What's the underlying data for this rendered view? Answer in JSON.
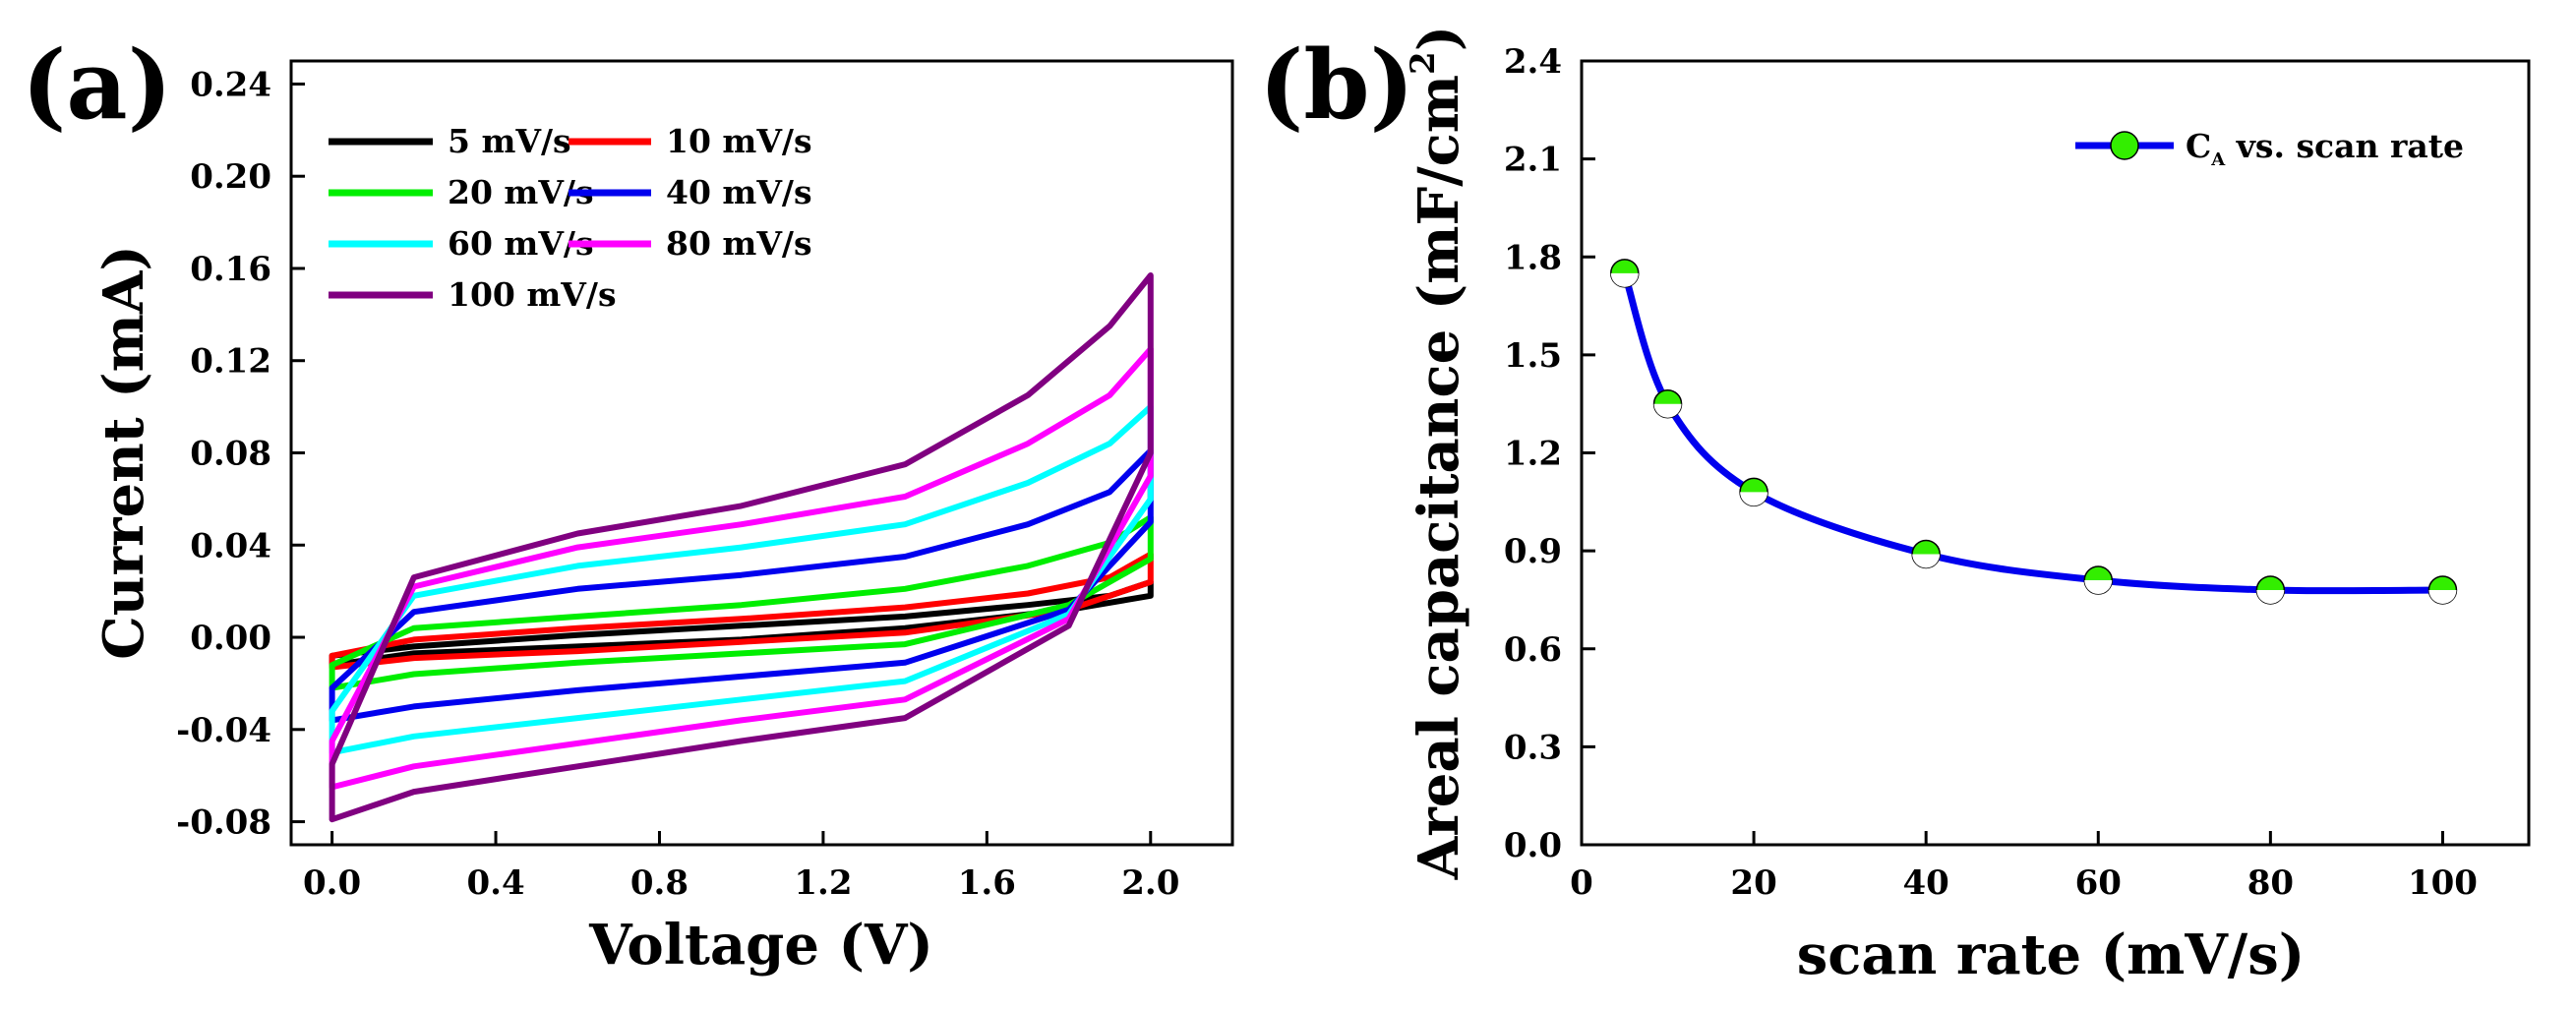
{
  "chart_data": [
    {
      "type": "line",
      "panel": "(a)",
      "title": "",
      "xlabel": "Voltage (V)",
      "ylabel": "Current (mA)",
      "xlim": [
        -0.1,
        2.2
      ],
      "ylim": [
        -0.09,
        0.25
      ],
      "xticks": [
        0.0,
        0.4,
        0.8,
        1.2,
        1.6,
        2.0
      ],
      "xtick_labels": [
        "0.0",
        "0.4",
        "0.8",
        "1.2",
        "1.6",
        "2.0"
      ],
      "yticks": [
        -0.08,
        -0.04,
        0.0,
        0.04,
        0.08,
        0.12,
        0.16,
        0.2,
        0.24
      ],
      "ytick_labels": [
        "-0.08",
        "-0.04",
        "0.00",
        "0.04",
        "0.08",
        "0.12",
        "0.16",
        "0.20",
        "0.24"
      ],
      "grid": false,
      "legend_position": "top-left",
      "series": [
        {
          "name": "5 mV/s",
          "color": "#000000",
          "upper": [
            [
              0,
              -0.008
            ],
            [
              0.2,
              -0.004
            ],
            [
              0.6,
              0.001
            ],
            [
              1.0,
              0.005
            ],
            [
              1.4,
              0.009
            ],
            [
              1.7,
              0.014
            ],
            [
              1.9,
              0.018
            ],
            [
              2.0,
              0.024
            ]
          ],
          "lower": [
            [
              2.0,
              0.018
            ],
            [
              1.8,
              0.012
            ],
            [
              1.4,
              0.004
            ],
            [
              1.0,
              -0.001
            ],
            [
              0.6,
              -0.004
            ],
            [
              0.2,
              -0.007
            ],
            [
              0,
              -0.012
            ]
          ]
        },
        {
          "name": "10 mV/s",
          "color": "#ff0000",
          "upper": [
            [
              0,
              -0.008
            ],
            [
              0.2,
              -0.001
            ],
            [
              0.6,
              0.004
            ],
            [
              1.0,
              0.008
            ],
            [
              1.4,
              0.013
            ],
            [
              1.7,
              0.019
            ],
            [
              1.9,
              0.026
            ],
            [
              2.0,
              0.036
            ]
          ],
          "lower": [
            [
              2.0,
              0.024
            ],
            [
              1.8,
              0.012
            ],
            [
              1.4,
              0.002
            ],
            [
              1.0,
              -0.002
            ],
            [
              0.6,
              -0.006
            ],
            [
              0.2,
              -0.009
            ],
            [
              0,
              -0.013
            ]
          ]
        },
        {
          "name": "20 mV/s",
          "color": "#00ee00",
          "upper": [
            [
              0,
              -0.012
            ],
            [
              0.2,
              0.004
            ],
            [
              0.6,
              0.009
            ],
            [
              1.0,
              0.014
            ],
            [
              1.4,
              0.021
            ],
            [
              1.7,
              0.031
            ],
            [
              1.9,
              0.041
            ],
            [
              2.0,
              0.052
            ]
          ],
          "lower": [
            [
              2.0,
              0.034
            ],
            [
              1.8,
              0.014
            ],
            [
              1.4,
              -0.003
            ],
            [
              1.0,
              -0.007
            ],
            [
              0.6,
              -0.011
            ],
            [
              0.2,
              -0.016
            ],
            [
              0,
              -0.022
            ]
          ]
        },
        {
          "name": "40 mV/s",
          "color": "#0000ee",
          "upper": [
            [
              0,
              -0.022
            ],
            [
              0.2,
              0.011
            ],
            [
              0.6,
              0.021
            ],
            [
              1.0,
              0.027
            ],
            [
              1.4,
              0.035
            ],
            [
              1.7,
              0.049
            ],
            [
              1.9,
              0.063
            ],
            [
              2.0,
              0.081
            ]
          ],
          "lower": [
            [
              2.0,
              0.05
            ],
            [
              1.8,
              0.012
            ],
            [
              1.4,
              -0.011
            ],
            [
              1.0,
              -0.017
            ],
            [
              0.6,
              -0.023
            ],
            [
              0.2,
              -0.03
            ],
            [
              0,
              -0.036
            ]
          ]
        },
        {
          "name": "60 mV/s",
          "color": "#00ffff",
          "upper": [
            [
              0,
              -0.032
            ],
            [
              0.2,
              0.018
            ],
            [
              0.6,
              0.031
            ],
            [
              1.0,
              0.039
            ],
            [
              1.4,
              0.049
            ],
            [
              1.7,
              0.067
            ],
            [
              1.9,
              0.084
            ],
            [
              2.0,
              0.1
            ]
          ],
          "lower": [
            [
              2.0,
              0.06
            ],
            [
              1.8,
              0.01
            ],
            [
              1.4,
              -0.019
            ],
            [
              1.0,
              -0.027
            ],
            [
              0.6,
              -0.035
            ],
            [
              0.2,
              -0.043
            ],
            [
              0,
              -0.05
            ]
          ]
        },
        {
          "name": "80 mV/s",
          "color": "#ff00ff",
          "upper": [
            [
              0,
              -0.045
            ],
            [
              0.2,
              0.022
            ],
            [
              0.6,
              0.039
            ],
            [
              1.0,
              0.049
            ],
            [
              1.4,
              0.061
            ],
            [
              1.7,
              0.084
            ],
            [
              1.9,
              0.105
            ],
            [
              2.0,
              0.125
            ]
          ],
          "lower": [
            [
              2.0,
              0.07
            ],
            [
              1.8,
              0.008
            ],
            [
              1.4,
              -0.027
            ],
            [
              1.0,
              -0.036
            ],
            [
              0.6,
              -0.046
            ],
            [
              0.2,
              -0.056
            ],
            [
              0,
              -0.065
            ]
          ]
        },
        {
          "name": "100 mV/s",
          "color": "#800080",
          "upper": [
            [
              0,
              -0.055
            ],
            [
              0.2,
              0.026
            ],
            [
              0.6,
              0.045
            ],
            [
              1.0,
              0.057
            ],
            [
              1.4,
              0.075
            ],
            [
              1.7,
              0.105
            ],
            [
              1.9,
              0.135
            ],
            [
              2.0,
              0.157
            ]
          ],
          "lower": [
            [
              2.0,
              0.08
            ],
            [
              1.8,
              0.005
            ],
            [
              1.4,
              -0.035
            ],
            [
              1.0,
              -0.045
            ],
            [
              0.6,
              -0.056
            ],
            [
              0.2,
              -0.067
            ],
            [
              0,
              -0.079
            ]
          ]
        }
      ]
    },
    {
      "type": "line",
      "panel": "(b)",
      "title": "",
      "xlabel": "scan rate (mV/s)",
      "ylabel": "Areal capacitance (mF/cm",
      "ylabel_superscript": "2",
      "ylabel_suffix": ")",
      "xlim": [
        0,
        110
      ],
      "ylim": [
        0,
        2.4
      ],
      "xticks": [
        0,
        20,
        40,
        60,
        80,
        100
      ],
      "xtick_labels": [
        "0",
        "20",
        "40",
        "60",
        "80",
        "100"
      ],
      "yticks": [
        0.0,
        0.3,
        0.6,
        0.9,
        1.2,
        1.5,
        1.8,
        2.1,
        2.4
      ],
      "ytick_labels": [
        "0.0",
        "0.3",
        "0.6",
        "0.9",
        "1.2",
        "1.5",
        "1.8",
        "2.1",
        "2.4"
      ],
      "grid": false,
      "legend_position": "top-right",
      "series": [
        {
          "name_main": "C",
          "name_sub": "A",
          "name_rest": " vs. scan rate",
          "line_color": "#0000ee",
          "marker_color": "#33ee00",
          "x": [
            5,
            10,
            20,
            40,
            60,
            80,
            100
          ],
          "y": [
            1.75,
            1.35,
            1.08,
            0.89,
            0.81,
            0.78,
            0.78
          ]
        }
      ]
    }
  ]
}
